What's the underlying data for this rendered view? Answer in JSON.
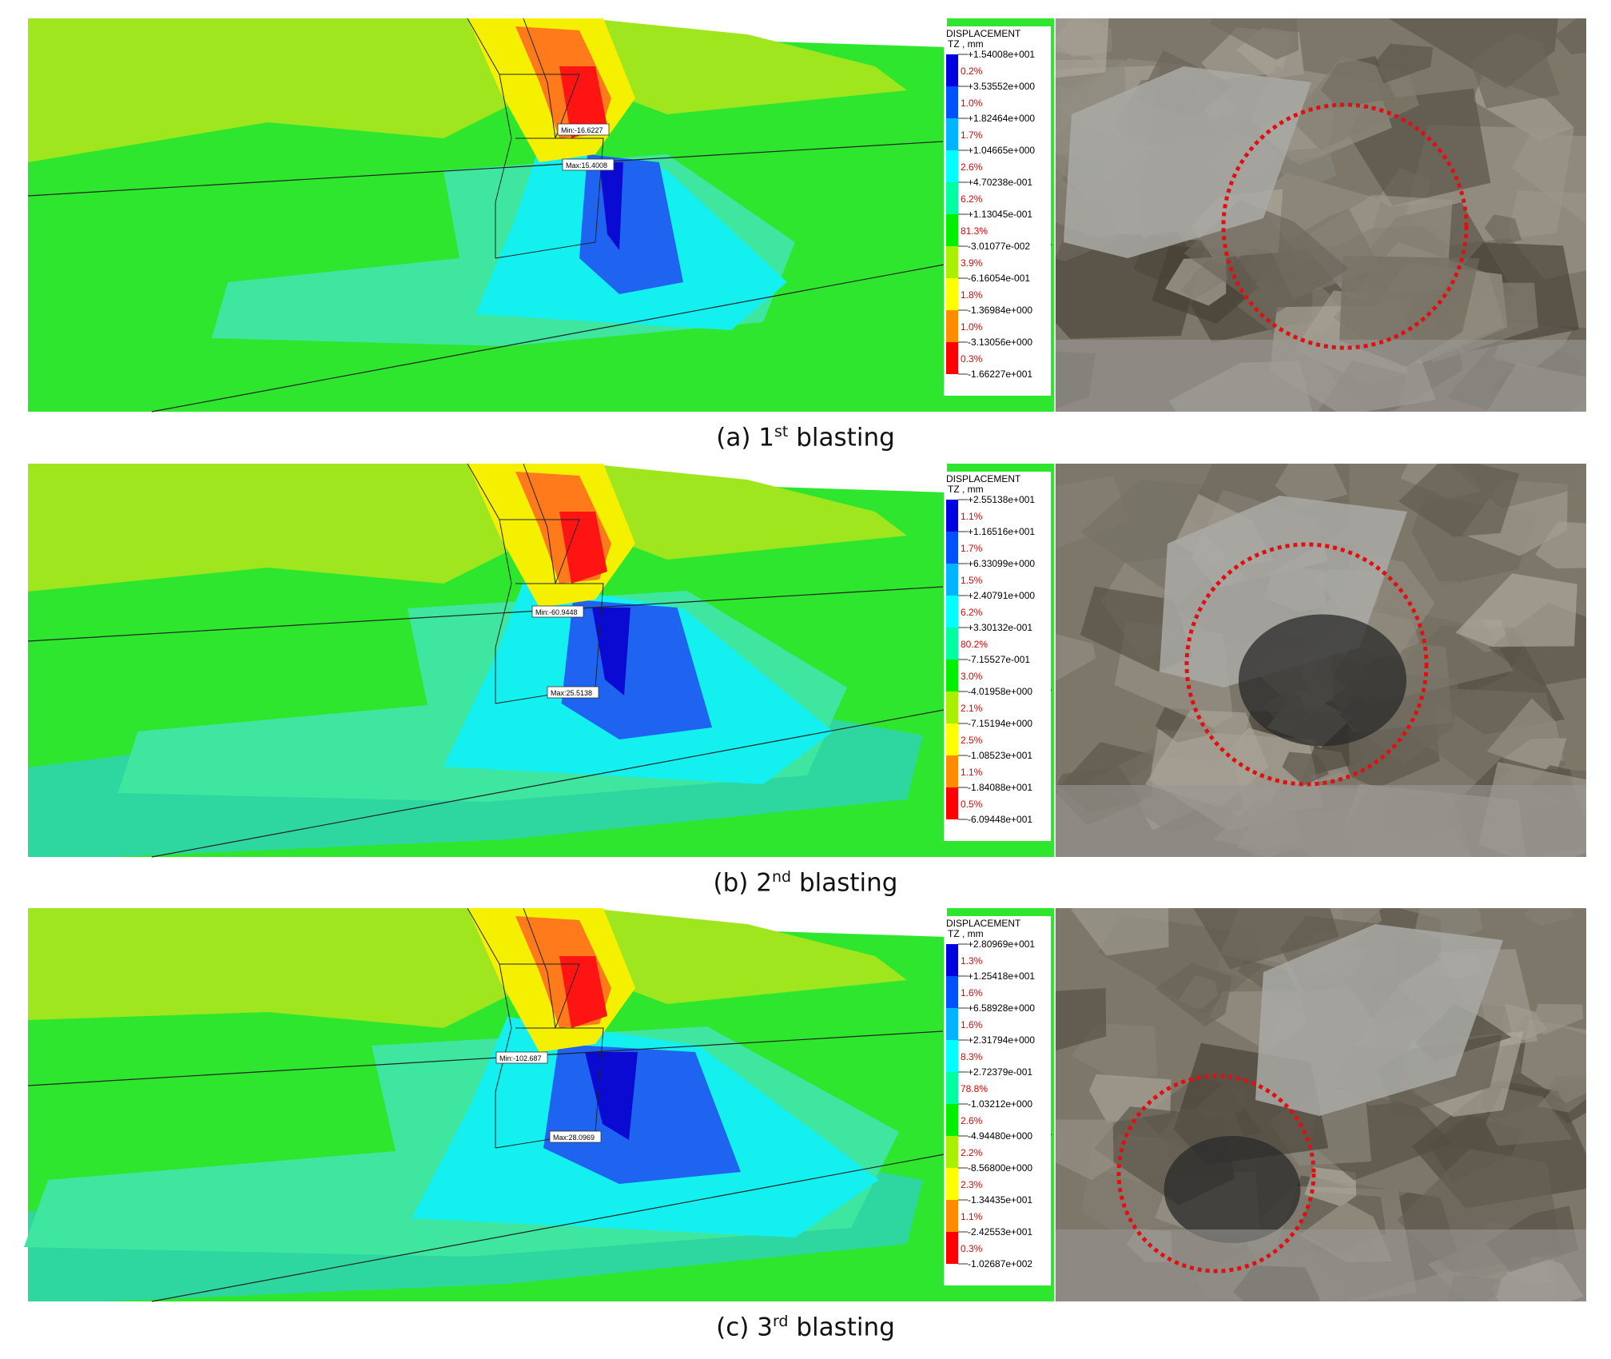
{
  "panels": [
    {
      "caption": {
        "label": "(a)",
        "number": "1",
        "ordinal": "st",
        "text": "blasting"
      },
      "legend": {
        "title": "DISPLACEMENT",
        "unit": "TZ , mm",
        "levels": [
          "+1.54008e+001",
          "+3.53552e+000",
          "+1.82464e+000",
          "+1.04665e+000",
          "+4.70238e-001",
          "+1.13045e-001",
          "-3.01077e-002",
          "-6.16054e-001",
          "-1.36984e+000",
          "-3.13056e+000",
          "-1.66227e+001"
        ],
        "percentages": [
          "0.2%",
          "1.0%",
          "1.7%",
          "2.6%",
          "6.2%",
          "81.3%",
          "3.9%",
          "1.8%",
          "1.0%",
          "0.3%"
        ]
      },
      "min_label": "Min:-16.6227",
      "max_label": "Max:15.4008"
    },
    {
      "caption": {
        "label": "(b)",
        "number": "2",
        "ordinal": "nd",
        "text": "blasting"
      },
      "legend": {
        "title": "DISPLACEMENT",
        "unit": "TZ , mm",
        "levels": [
          "+2.55138e+001",
          "+1.16516e+001",
          "+6.33099e+000",
          "+2.40791e+000",
          "+3.30132e-001",
          "-7.15527e-001",
          "-4.01958e+000",
          "-7.15194e+000",
          "-1.08523e+001",
          "-1.84088e+001",
          "-6.09448e+001"
        ],
        "percentages": [
          "1.1%",
          "1.7%",
          "1.5%",
          "6.2%",
          "80.2%",
          "3.0%",
          "2.1%",
          "2.5%",
          "1.1%",
          "0.5%"
        ]
      },
      "min_label": "Min:-60.9448",
      "max_label": "Max:25.5138"
    },
    {
      "caption": {
        "label": "(c)",
        "number": "3",
        "ordinal": "rd",
        "text": "blasting"
      },
      "legend": {
        "title": "DISPLACEMENT",
        "unit": "TZ , mm",
        "levels": [
          "+2.80969e+001",
          "+1.25418e+001",
          "+6.58928e+000",
          "+2.31794e+000",
          "+2.72379e-001",
          "-1.03212e+000",
          "-4.94480e+000",
          "-8.56800e+000",
          "-1.34435e+001",
          "-2.42553e+001",
          "-1.02687e+002"
        ],
        "percentages": [
          "1.3%",
          "1.6%",
          "1.6%",
          "8.3%",
          "78.8%",
          "2.6%",
          "2.2%",
          "2.3%",
          "1.1%",
          "0.3%"
        ]
      },
      "min_label": "Min:-102.687",
      "max_label": "Max:28.0969"
    }
  ]
}
